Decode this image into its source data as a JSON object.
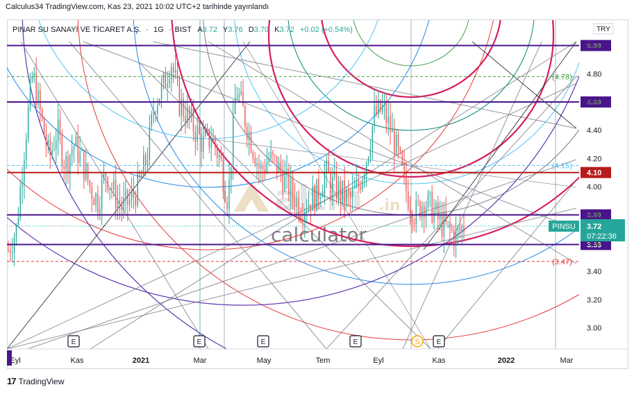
{
  "header": {
    "publish_text": "Calculus34 TradingView.com, Kas 23, 2021 10:02 UTC+2 tarihinde yayınlandı"
  },
  "legend": {
    "symbol_text": "PINAR SU SANAYİ VE TİCARET A.Ş.",
    "interval": "1G",
    "exchange": "BIST",
    "o_label": "A",
    "o_value": "3.72",
    "h_label": "Y",
    "h_value": "3.76",
    "l_label": "D",
    "l_value": "3.70",
    "c_label": "K",
    "c_value": "3.72",
    "change": "+0.02 (+0.54%)"
  },
  "currency_badge": "TRY",
  "watermark": {
    "brand": "altin",
    "suffix": ".in",
    "subtitle": "calculator"
  },
  "footer": {
    "brand": "TradingView",
    "logo_glyph": "17"
  },
  "colors": {
    "up": "#26a69a",
    "down": "#ef5350",
    "purple": "#4a148c",
    "darkred": "#b71c1c",
    "magenta": "#d81b60",
    "teal": "#00897b",
    "green": "#43a047",
    "blue": "#1e88e5",
    "lightblue": "#4fc3f7",
    "gray": "#787b86"
  },
  "chart_data": {
    "type": "candlestick",
    "symbol_tag": "PINSU",
    "last_price": "3.72",
    "countdown": "07:22:36",
    "ylim": [
      2.85,
      5.18
    ],
    "y_ticks": [
      "3.00",
      "3.20",
      "3.40",
      "3.60",
      "3.80",
      "4.00",
      "4.20",
      "4.40",
      "4.60",
      "4.80",
      "5.00"
    ],
    "x_ticks": [
      "Eyl",
      "Kas",
      "2021",
      "Mar",
      "May",
      "Tem",
      "Eyl",
      "Kas",
      "2022",
      "Mar"
    ],
    "horizontal_levels": [
      {
        "value": 5.0,
        "label": "5.00",
        "color": "#4a148c",
        "style": "solid"
      },
      {
        "value": 4.78,
        "label": "(4.78)",
        "color": "#43a047",
        "style": "dashed"
      },
      {
        "value": 4.6,
        "label": "4.60",
        "color": "#4a148c",
        "style": "solid"
      },
      {
        "value": 4.15,
        "label": "(4.15)",
        "color": "#4fc3f7",
        "style": "dashed"
      },
      {
        "value": 4.1,
        "label": "4.10",
        "color": "#b71c1c",
        "style": "solid"
      },
      {
        "value": 3.8,
        "label": "3.80",
        "color": "#4a148c",
        "style": "solid"
      },
      {
        "value": 3.59,
        "label": "3.59",
        "color": "#4a148c",
        "style": "solid"
      },
      {
        "value": 3.47,
        "label": "(3.47)",
        "color": "#e53935",
        "style": "dashed"
      }
    ],
    "event_markers": [
      "E",
      "E",
      "E",
      "E",
      "S",
      "E"
    ],
    "price_path": [
      3.55,
      3.7,
      4.3,
      4.8,
      4.5,
      4.2,
      4.4,
      4.15,
      4.3,
      4.2,
      4.0,
      3.9,
      4.1,
      3.95,
      3.85,
      3.9,
      4.0,
      4.2,
      4.6,
      4.7,
      4.9,
      4.6,
      4.5,
      4.4,
      4.3,
      4.35,
      4.2,
      3.9,
      4.7,
      4.5,
      4.3,
      4.1,
      4.2,
      4.15,
      4.05,
      3.95,
      3.85,
      3.9,
      3.95,
      4.1,
      4.0,
      3.95,
      3.9,
      4.0,
      4.2,
      4.5,
      4.55,
      4.4,
      4.2,
      3.95,
      3.8,
      3.9,
      3.85,
      3.75,
      3.7,
      3.65,
      3.72
    ]
  }
}
